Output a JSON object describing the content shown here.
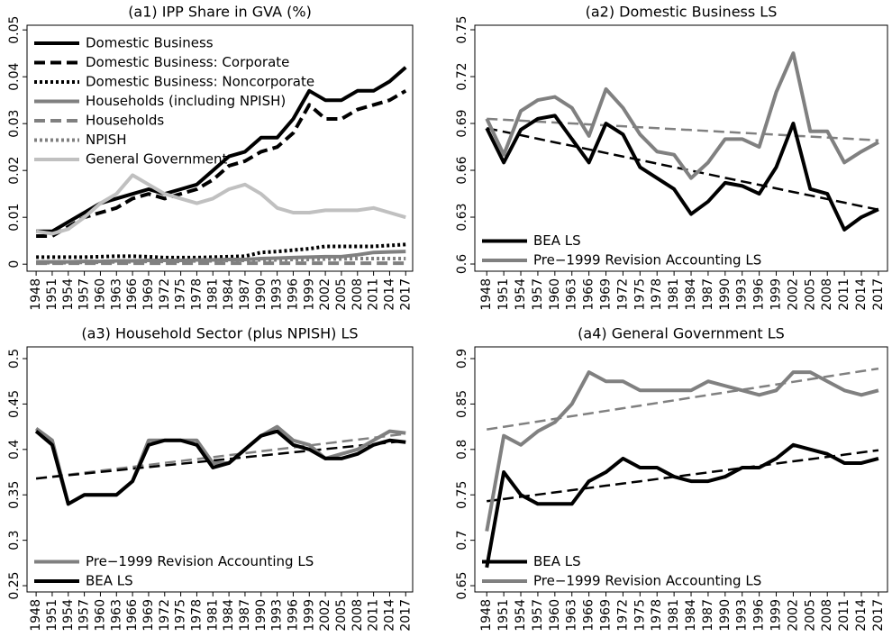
{
  "chart_data": [
    {
      "type": "line",
      "title": "(a1) IPP Share in GVA (%)",
      "legend": "upper left",
      "x": [
        1948,
        1951,
        1954,
        1957,
        1960,
        1963,
        1966,
        1969,
        1972,
        1975,
        1978,
        1981,
        1984,
        1987,
        1990,
        1993,
        1996,
        1999,
        2002,
        2005,
        2008,
        2011,
        2014,
        2017
      ],
      "xlim": [
        1946.3,
        2018.3
      ],
      "xticks": [
        1948,
        1951,
        1954,
        1957,
        1960,
        1963,
        1966,
        1969,
        1972,
        1975,
        1978,
        1981,
        1984,
        1987,
        1990,
        1993,
        1996,
        1999,
        2002,
        2005,
        2008,
        2011,
        2014,
        2017
      ],
      "ylim": [
        -0.0015,
        0.051
      ],
      "yticks": [
        0,
        0.01,
        0.02,
        0.03,
        0.04,
        0.05
      ],
      "series": [
        {
          "name": "Domestic Business",
          "color": "#000000",
          "dash": "solid",
          "values": [
            0.007,
            0.007,
            0.009,
            0.011,
            0.013,
            0.014,
            0.015,
            0.016,
            0.015,
            0.016,
            0.017,
            0.02,
            0.023,
            0.024,
            0.027,
            0.027,
            0.031,
            0.037,
            0.035,
            0.035,
            0.037,
            0.037,
            0.039,
            0.042
          ]
        },
        {
          "name": "Domestic Business: Corporate",
          "color": "#000000",
          "dash": "dashed",
          "values": [
            0.006,
            0.006,
            0.008,
            0.01,
            0.011,
            0.012,
            0.014,
            0.015,
            0.014,
            0.015,
            0.016,
            0.018,
            0.021,
            0.022,
            0.024,
            0.025,
            0.028,
            0.034,
            0.031,
            0.031,
            0.033,
            0.034,
            0.035,
            0.037
          ]
        },
        {
          "name": "Domestic Business: Noncorporate",
          "color": "#000000",
          "dash": "dotted",
          "values": [
            0.0015,
            0.0015,
            0.0015,
            0.0015,
            0.0016,
            0.0017,
            0.0017,
            0.0016,
            0.0014,
            0.0014,
            0.0014,
            0.0015,
            0.0016,
            0.0017,
            0.0025,
            0.0027,
            0.003,
            0.0033,
            0.0038,
            0.0038,
            0.0038,
            0.0038,
            0.004,
            0.0042
          ]
        },
        {
          "name": "Households (including NPISH)",
          "color": "#808080",
          "dash": "solid",
          "values": [
            0.0005,
            0.0005,
            0.0005,
            0.0006,
            0.0006,
            0.0007,
            0.0007,
            0.0008,
            0.0008,
            0.0008,
            0.0009,
            0.0009,
            0.001,
            0.001,
            0.0012,
            0.0013,
            0.0014,
            0.0015,
            0.0016,
            0.0016,
            0.002,
            0.0025,
            0.0026,
            0.0027
          ]
        },
        {
          "name": "Households",
          "color": "#808080",
          "dash": "dashed",
          "values": [
            0.0002,
            0.0002,
            0.0002,
            0.0002,
            0.0002,
            0.0002,
            0.0002,
            0.0002,
            0.0002,
            0.0002,
            0.0002,
            0.0002,
            0.0002,
            0.0002,
            0.0002,
            0.0002,
            0.0002,
            0.0002,
            0.0002,
            0.0002,
            0.0002,
            0.0002,
            0.0002,
            0.0002
          ]
        },
        {
          "name": "NPISH",
          "color": "#808080",
          "dash": "dotted",
          "values": [
            0.0003,
            0.0003,
            0.0003,
            0.0004,
            0.0004,
            0.0005,
            0.0005,
            0.0006,
            0.0006,
            0.0006,
            0.0007,
            0.0007,
            0.0008,
            0.0008,
            0.0009,
            0.0009,
            0.001,
            0.001,
            0.0011,
            0.0011,
            0.0012,
            0.0012,
            0.0012,
            0.0012
          ]
        },
        {
          "name": "General Government",
          "color": "#c0c0c0",
          "dash": "solid",
          "values": [
            0.007,
            0.0065,
            0.0075,
            0.01,
            0.013,
            0.015,
            0.019,
            0.017,
            0.015,
            0.014,
            0.013,
            0.014,
            0.016,
            0.017,
            0.015,
            0.012,
            0.011,
            0.011,
            0.0115,
            0.0115,
            0.0115,
            0.012,
            0.011,
            0.01
          ]
        }
      ]
    },
    {
      "type": "line",
      "title": "(a2) Domestic Business LS",
      "legend": "lower left",
      "x": [
        1948,
        1951,
        1954,
        1957,
        1960,
        1963,
        1966,
        1969,
        1972,
        1975,
        1978,
        1981,
        1984,
        1987,
        1990,
        1993,
        1996,
        1999,
        2002,
        2005,
        2008,
        2011,
        2014,
        2017
      ],
      "xlim": [
        1945.9,
        2018.6
      ],
      "xticks": [
        1948,
        1951,
        1954,
        1957,
        1960,
        1963,
        1966,
        1969,
        1972,
        1975,
        1978,
        1981,
        1984,
        1987,
        1990,
        1993,
        1996,
        1999,
        2002,
        2005,
        2008,
        2011,
        2014,
        2017
      ],
      "ylim": [
        0.5954,
        0.7529
      ],
      "yticks": [
        0.6,
        0.63,
        0.66,
        0.69,
        0.72,
        0.75
      ],
      "series": [
        {
          "color": "#808080",
          "dash": "dashed",
          "values": [
            0.693,
            0.6924,
            0.6918,
            0.6912,
            0.6906,
            0.69,
            0.6894,
            0.6888,
            0.6882,
            0.6876,
            0.687,
            0.6864,
            0.6858,
            0.6852,
            0.6846,
            0.684,
            0.6834,
            0.6828,
            0.6822,
            0.6816,
            0.681,
            0.6804,
            0.6798,
            0.6792
          ]
        },
        {
          "color": "#000000",
          "dash": "dashed",
          "values": [
            0.687,
            0.6847,
            0.6825,
            0.6802,
            0.6779,
            0.6757,
            0.6734,
            0.6711,
            0.6688,
            0.6666,
            0.6643,
            0.662,
            0.6598,
            0.6575,
            0.6552,
            0.6529,
            0.6507,
            0.6484,
            0.6461,
            0.6439,
            0.6416,
            0.6393,
            0.637,
            0.6348
          ]
        },
        {
          "name": "BEA LS",
          "color": "#000000",
          "dash": "solid",
          "values": [
            0.687,
            0.665,
            0.686,
            0.693,
            0.695,
            0.68,
            0.665,
            0.69,
            0.683,
            0.662,
            0.655,
            0.648,
            0.632,
            0.64,
            0.652,
            0.65,
            0.645,
            0.662,
            0.69,
            0.648,
            0.645,
            0.622,
            0.63,
            0.635
          ]
        },
        {
          "name": "Pre−1999 Revision Accounting LS",
          "color": "#808080",
          "dash": "solid",
          "values": [
            0.693,
            0.67,
            0.698,
            0.705,
            0.707,
            0.7,
            0.682,
            0.712,
            0.7,
            0.683,
            0.672,
            0.67,
            0.655,
            0.665,
            0.68,
            0.68,
            0.675,
            0.71,
            0.735,
            0.685,
            0.685,
            0.665,
            0.672,
            0.678
          ]
        }
      ]
    },
    {
      "type": "line",
      "title": "(a3) Household Sector (plus NPISH) LS",
      "legend": "lower left",
      "x": [
        1948,
        1951,
        1954,
        1957,
        1960,
        1963,
        1966,
        1969,
        1972,
        1975,
        1978,
        1981,
        1984,
        1987,
        1990,
        1993,
        1996,
        1999,
        2002,
        2005,
        2008,
        2011,
        2014,
        2017
      ],
      "xlim": [
        1946.3,
        2018.3
      ],
      "xticks": [
        1948,
        1951,
        1954,
        1957,
        1960,
        1963,
        1966,
        1969,
        1972,
        1975,
        1978,
        1981,
        1984,
        1987,
        1990,
        1993,
        1996,
        1999,
        2002,
        2005,
        2008,
        2011,
        2014,
        2017
      ],
      "ylim": [
        0.2431,
        0.5129
      ],
      "yticks": [
        0.25,
        0.3,
        0.35,
        0.4,
        0.45,
        0.5
      ],
      "series": [
        {
          "color": "#808080",
          "dash": "dashed",
          "values": [
            0.368,
            0.3701,
            0.3723,
            0.3744,
            0.3766,
            0.3787,
            0.3808,
            0.383,
            0.3851,
            0.3873,
            0.3894,
            0.3915,
            0.3937,
            0.3958,
            0.398,
            0.4001,
            0.4022,
            0.4044,
            0.4065,
            0.4087,
            0.4108,
            0.4129,
            0.4151,
            0.4172
          ]
        },
        {
          "color": "#000000",
          "dash": "dashed",
          "values": [
            0.368,
            0.3698,
            0.3716,
            0.3734,
            0.3752,
            0.377,
            0.3788,
            0.3806,
            0.3824,
            0.3842,
            0.386,
            0.3878,
            0.3896,
            0.3914,
            0.3932,
            0.395,
            0.3968,
            0.3986,
            0.4004,
            0.4022,
            0.404,
            0.4058,
            0.4076,
            0.4094
          ]
        },
        {
          "name": "Pre−1999 Revision Accounting LS",
          "color": "#808080",
          "dash": "solid",
          "values": [
            0.423,
            0.41,
            0.34,
            0.35,
            0.35,
            0.35,
            0.365,
            0.41,
            0.41,
            0.41,
            0.41,
            0.385,
            0.385,
            0.4,
            0.415,
            0.425,
            0.41,
            0.405,
            0.39,
            0.395,
            0.4,
            0.41,
            0.42,
            0.418
          ]
        },
        {
          "name": "BEA LS",
          "color": "#000000",
          "dash": "solid",
          "values": [
            0.42,
            0.405,
            0.34,
            0.35,
            0.35,
            0.35,
            0.365,
            0.405,
            0.41,
            0.41,
            0.405,
            0.38,
            0.385,
            0.4,
            0.415,
            0.42,
            0.405,
            0.4,
            0.39,
            0.39,
            0.395,
            0.405,
            0.41,
            0.408
          ]
        }
      ]
    },
    {
      "type": "line",
      "title": "(a4) General Government LS",
      "legend": "lower left",
      "x": [
        1948,
        1951,
        1954,
        1957,
        1960,
        1963,
        1966,
        1969,
        1972,
        1975,
        1978,
        1981,
        1984,
        1987,
        1990,
        1993,
        1996,
        1999,
        2002,
        2005,
        2008,
        2011,
        2014,
        2017
      ],
      "xlim": [
        1945.9,
        2018.6
      ],
      "xticks": [
        1948,
        1951,
        1954,
        1957,
        1960,
        1963,
        1966,
        1969,
        1972,
        1975,
        1978,
        1981,
        1984,
        1987,
        1990,
        1993,
        1996,
        1999,
        2002,
        2005,
        2008,
        2011,
        2014,
        2017
      ],
      "ylim": [
        0.6431,
        0.9129
      ],
      "yticks": [
        0.65,
        0.7,
        0.75,
        0.8,
        0.85,
        0.9
      ],
      "series": [
        {
          "color": "#808080",
          "dash": "dashed",
          "values": [
            0.822,
            0.8249,
            0.8278,
            0.8307,
            0.8337,
            0.8366,
            0.8395,
            0.8424,
            0.8453,
            0.8482,
            0.8511,
            0.854,
            0.857,
            0.8599,
            0.8628,
            0.8657,
            0.8686,
            0.8715,
            0.8744,
            0.8773,
            0.8803,
            0.8832,
            0.8861,
            0.889
          ]
        },
        {
          "color": "#000000",
          "dash": "dashed",
          "values": [
            0.743,
            0.7454,
            0.7479,
            0.7503,
            0.7527,
            0.7552,
            0.7576,
            0.7601,
            0.7625,
            0.7649,
            0.7674,
            0.7698,
            0.7723,
            0.7747,
            0.7771,
            0.7796,
            0.782,
            0.7845,
            0.7869,
            0.7893,
            0.7918,
            0.7942,
            0.7967,
            0.7991
          ]
        },
        {
          "name": "BEA LS",
          "color": "#000000",
          "dash": "solid",
          "values": [
            0.67,
            0.775,
            0.75,
            0.74,
            0.74,
            0.74,
            0.765,
            0.775,
            0.79,
            0.78,
            0.78,
            0.77,
            0.765,
            0.765,
            0.77,
            0.78,
            0.78,
            0.79,
            0.805,
            0.8,
            0.795,
            0.785,
            0.785,
            0.79
          ]
        },
        {
          "name": "Pre−1999 Revision Accounting LS",
          "color": "#808080",
          "dash": "solid",
          "values": [
            0.71,
            0.815,
            0.805,
            0.82,
            0.83,
            0.85,
            0.885,
            0.875,
            0.875,
            0.865,
            0.865,
            0.865,
            0.865,
            0.875,
            0.87,
            0.865,
            0.86,
            0.865,
            0.885,
            0.885,
            0.875,
            0.865,
            0.86,
            0.865
          ]
        }
      ]
    }
  ]
}
